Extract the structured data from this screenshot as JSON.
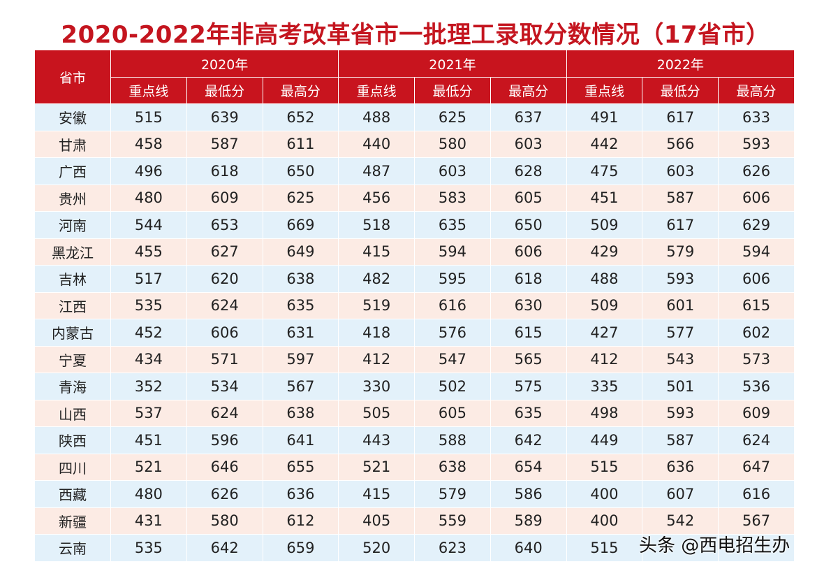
{
  "title": "2020-2022年非高考改革省市一批理工录取分数情况（17省市）",
  "header": {
    "province_label": "省市",
    "years": [
      "2020年",
      "2021年",
      "2022年"
    ],
    "sub_labels": [
      "重点线",
      "最低分",
      "最高分"
    ]
  },
  "rows": [
    {
      "province": "安徽",
      "values": [
        "515",
        "639",
        "652",
        "488",
        "625",
        "637",
        "491",
        "617",
        "633"
      ]
    },
    {
      "province": "甘肃",
      "values": [
        "458",
        "587",
        "611",
        "440",
        "580",
        "603",
        "442",
        "566",
        "593"
      ]
    },
    {
      "province": "广西",
      "values": [
        "496",
        "618",
        "650",
        "487",
        "603",
        "628",
        "475",
        "603",
        "626"
      ]
    },
    {
      "province": "贵州",
      "values": [
        "480",
        "609",
        "625",
        "456",
        "583",
        "605",
        "451",
        "587",
        "606"
      ]
    },
    {
      "province": "河南",
      "values": [
        "544",
        "653",
        "669",
        "518",
        "635",
        "650",
        "509",
        "617",
        "629"
      ]
    },
    {
      "province": "黑龙江",
      "values": [
        "455",
        "627",
        "649",
        "415",
        "594",
        "606",
        "429",
        "579",
        "594"
      ]
    },
    {
      "province": "吉林",
      "values": [
        "517",
        "620",
        "638",
        "482",
        "595",
        "618",
        "488",
        "593",
        "606"
      ]
    },
    {
      "province": "江西",
      "values": [
        "535",
        "624",
        "635",
        "519",
        "616",
        "630",
        "509",
        "601",
        "615"
      ]
    },
    {
      "province": "内蒙古",
      "values": [
        "452",
        "606",
        "631",
        "418",
        "576",
        "615",
        "427",
        "577",
        "602"
      ]
    },
    {
      "province": "宁夏",
      "values": [
        "434",
        "571",
        "597",
        "412",
        "547",
        "565",
        "412",
        "543",
        "573"
      ]
    },
    {
      "province": "青海",
      "values": [
        "352",
        "534",
        "567",
        "330",
        "502",
        "575",
        "335",
        "501",
        "536"
      ]
    },
    {
      "province": "山西",
      "values": [
        "537",
        "624",
        "638",
        "505",
        "605",
        "635",
        "498",
        "593",
        "609"
      ]
    },
    {
      "province": "陕西",
      "values": [
        "451",
        "596",
        "641",
        "443",
        "588",
        "642",
        "449",
        "587",
        "624"
      ]
    },
    {
      "province": "四川",
      "values": [
        "521",
        "646",
        "655",
        "521",
        "638",
        "654",
        "515",
        "636",
        "647"
      ]
    },
    {
      "province": "西藏",
      "values": [
        "480",
        "626",
        "636",
        "415",
        "579",
        "586",
        "400",
        "607",
        "616"
      ]
    },
    {
      "province": "新疆",
      "values": [
        "431",
        "580",
        "612",
        "405",
        "559",
        "589",
        "400",
        "542",
        "567"
      ]
    },
    {
      "province": "云南",
      "values": [
        "535",
        "642",
        "659",
        "520",
        "623",
        "640",
        "515",
        "",
        ""
      ]
    }
  ],
  "watermark": "头条 @西电招生办",
  "colors": {
    "title_red": "#c4151f",
    "header_red": "#c8141e",
    "row_blue": "#e3f1fa",
    "row_pink": "#fcebe4"
  }
}
